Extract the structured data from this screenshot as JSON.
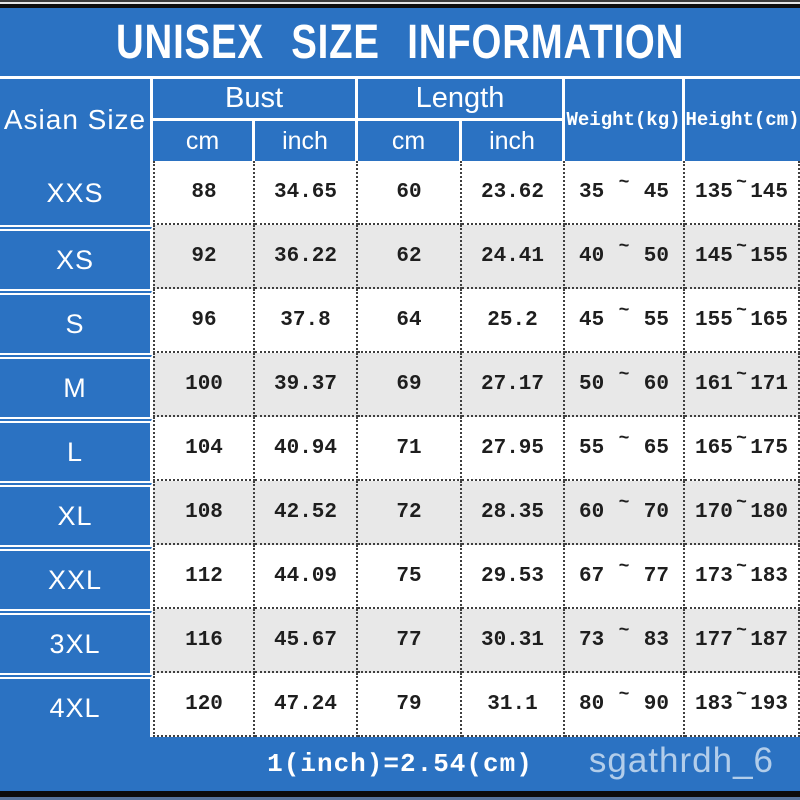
{
  "title": "UNISEX SIZE INFORMATION",
  "table": {
    "size_header": "Asian Size",
    "groups": [
      {
        "label": "Bust",
        "sub": [
          "cm",
          "inch"
        ]
      },
      {
        "label": "Length",
        "sub": [
          "cm",
          "inch"
        ]
      }
    ],
    "weight_header": "Weight(kg)",
    "height_header": "Height(cm)",
    "tilde": "~",
    "rows": [
      {
        "size": "XXS",
        "bust_cm": "88",
        "bust_inch": "34.65",
        "length_cm": "60",
        "length_inch": "23.62",
        "weight_min": "35",
        "weight_max": "45",
        "height_min": "135",
        "height_max": "145"
      },
      {
        "size": "XS",
        "bust_cm": "92",
        "bust_inch": "36.22",
        "length_cm": "62",
        "length_inch": "24.41",
        "weight_min": "40",
        "weight_max": "50",
        "height_min": "145",
        "height_max": "155"
      },
      {
        "size": "S",
        "bust_cm": "96",
        "bust_inch": "37.8",
        "length_cm": "64",
        "length_inch": "25.2",
        "weight_min": "45",
        "weight_max": "55",
        "height_min": "155",
        "height_max": "165"
      },
      {
        "size": "M",
        "bust_cm": "100",
        "bust_inch": "39.37",
        "length_cm": "69",
        "length_inch": "27.17",
        "weight_min": "50",
        "weight_max": "60",
        "height_min": "161",
        "height_max": "171"
      },
      {
        "size": "L",
        "bust_cm": "104",
        "bust_inch": "40.94",
        "length_cm": "71",
        "length_inch": "27.95",
        "weight_min": "55",
        "weight_max": "65",
        "height_min": "165",
        "height_max": "175"
      },
      {
        "size": "XL",
        "bust_cm": "108",
        "bust_inch": "42.52",
        "length_cm": "72",
        "length_inch": "28.35",
        "weight_min": "60",
        "weight_max": "70",
        "height_min": "170",
        "height_max": "180"
      },
      {
        "size": "XXL",
        "bust_cm": "112",
        "bust_inch": "44.09",
        "length_cm": "75",
        "length_inch": "29.53",
        "weight_min": "67",
        "weight_max": "77",
        "height_min": "173",
        "height_max": "183"
      },
      {
        "size": "3XL",
        "bust_cm": "116",
        "bust_inch": "45.67",
        "length_cm": "77",
        "length_inch": "30.31",
        "weight_min": "73",
        "weight_max": "83",
        "height_min": "177",
        "height_max": "187"
      },
      {
        "size": "4XL",
        "bust_cm": "120",
        "bust_inch": "47.24",
        "length_cm": "79",
        "length_inch": "31.1",
        "weight_min": "80",
        "weight_max": "90",
        "height_min": "183",
        "height_max": "193"
      }
    ]
  },
  "footer": {
    "conversion": "1(inch)=2.54(cm)",
    "watermark": "sgathrdh_6"
  },
  "colors": {
    "accent_blue": "#2b72c2",
    "row_white": "#ffffff",
    "row_alt_gray": "#e8e8e8",
    "dotted_line": "#3f3f3f",
    "bar_black": "#0c0c0c",
    "text_white": "#ffffff",
    "text_dark": "#1e1e1e",
    "watermark_text": "rgba(230,240,250,0.72)"
  }
}
